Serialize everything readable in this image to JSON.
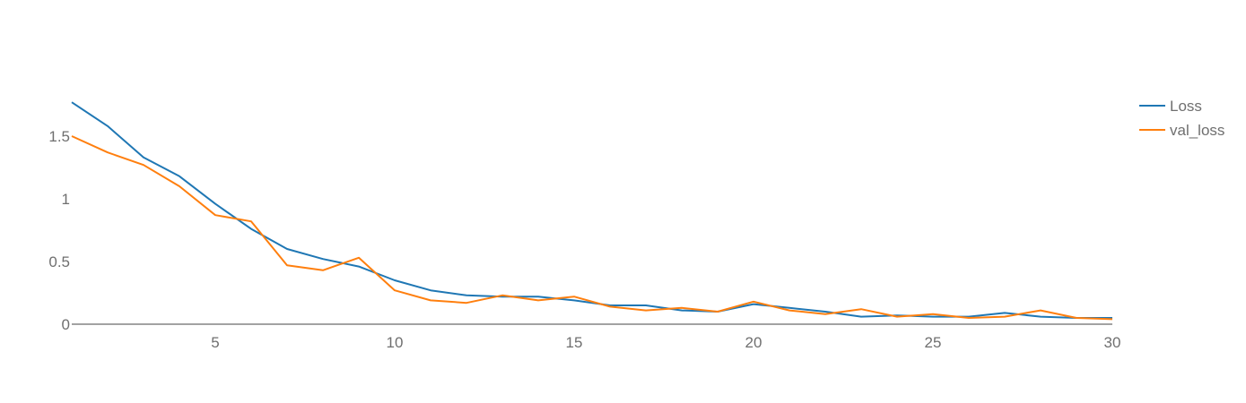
{
  "chart_data": {
    "type": "line",
    "title": "",
    "xlabel": "",
    "ylabel": "",
    "xlim": [
      1,
      30
    ],
    "ylim": [
      0,
      1.9
    ],
    "x_ticks": [
      5,
      10,
      15,
      20,
      25,
      30
    ],
    "x_tick_labels": [
      "5",
      "10",
      "15",
      "20",
      "25",
      "30"
    ],
    "y_ticks": [
      0,
      0.5,
      1,
      1.5
    ],
    "y_tick_labels": [
      "0",
      "0.5",
      "1",
      "1.5"
    ],
    "grid": false,
    "legend_position": "top-right",
    "x": [
      1,
      2,
      3,
      4,
      5,
      6,
      7,
      8,
      9,
      10,
      11,
      12,
      13,
      14,
      15,
      16,
      17,
      18,
      19,
      20,
      21,
      22,
      23,
      24,
      25,
      26,
      27,
      28,
      29,
      30
    ],
    "series": [
      {
        "name": "Loss",
        "color": "#1f77b4",
        "values": [
          1.77,
          1.58,
          1.33,
          1.18,
          0.96,
          0.76,
          0.6,
          0.52,
          0.46,
          0.35,
          0.27,
          0.23,
          0.22,
          0.22,
          0.19,
          0.15,
          0.15,
          0.11,
          0.1,
          0.16,
          0.13,
          0.1,
          0.06,
          0.07,
          0.06,
          0.06,
          0.09,
          0.06,
          0.05,
          0.05
        ]
      },
      {
        "name": "val_loss",
        "color": "#ff7f0e",
        "values": [
          1.5,
          1.37,
          1.27,
          1.1,
          0.87,
          0.82,
          0.47,
          0.43,
          0.53,
          0.27,
          0.19,
          0.17,
          0.23,
          0.19,
          0.22,
          0.14,
          0.11,
          0.13,
          0.1,
          0.18,
          0.11,
          0.08,
          0.12,
          0.06,
          0.08,
          0.05,
          0.06,
          0.11,
          0.05,
          0.04
        ]
      }
    ]
  }
}
